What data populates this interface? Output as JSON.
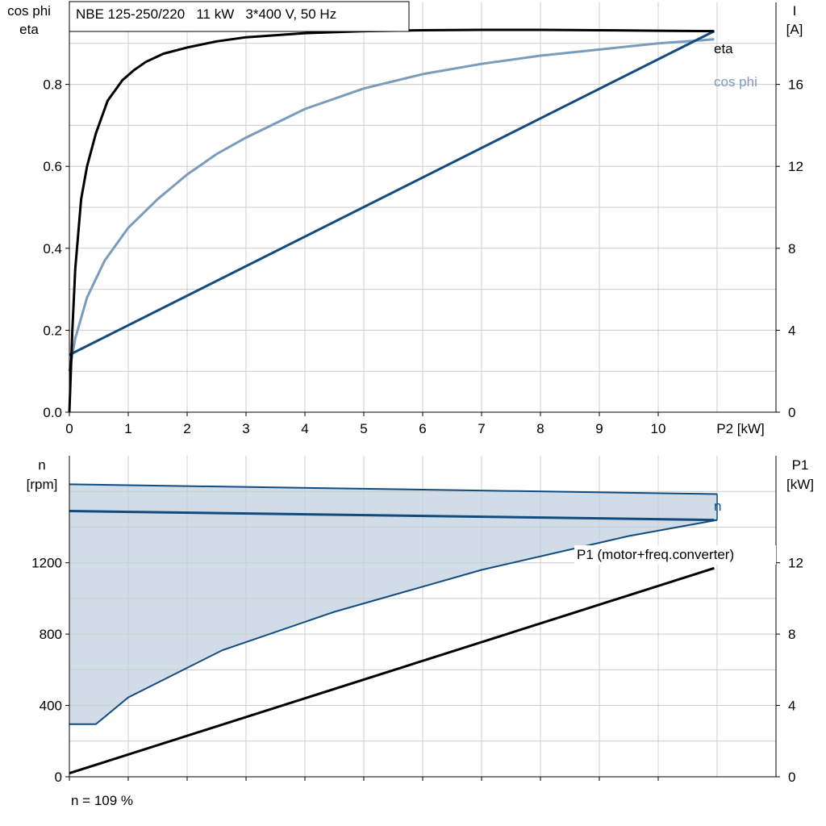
{
  "chart_data": [
    {
      "type": "line",
      "title": "NBE 125-250/220   11 kW   3*400 V, 50 Hz",
      "xlabel": "P2 [kW]",
      "xlim": [
        0,
        12
      ],
      "xticks": [
        0,
        1,
        2,
        3,
        4,
        5,
        6,
        7,
        8,
        9,
        10
      ],
      "ylabel_left": [
        "cos phi",
        "eta"
      ],
      "ylim_left": [
        0,
        1.0
      ],
      "yticks_left": [
        "0.0",
        "0.2",
        "0.4",
        "0.6",
        "0.8"
      ],
      "ylabel_right": [
        "I",
        "[A]"
      ],
      "ylim_right": [
        0,
        20
      ],
      "yticks_right": [
        "0",
        "4",
        "8",
        "12",
        "16"
      ],
      "grid": true,
      "series": [
        {
          "name": "eta",
          "axis": "left",
          "color": "#000000",
          "x": [
            0,
            0.05,
            0.1,
            0.2,
            0.3,
            0.45,
            0.65,
            0.9,
            1.1,
            1.3,
            1.6,
            2.0,
            2.5,
            3.0,
            4.0,
            5.0,
            6.0,
            7.0,
            8.0,
            9.0,
            10.0,
            10.95
          ],
          "y": [
            0,
            0.2,
            0.35,
            0.52,
            0.6,
            0.68,
            0.76,
            0.81,
            0.835,
            0.855,
            0.875,
            0.89,
            0.905,
            0.915,
            0.925,
            0.93,
            0.932,
            0.933,
            0.933,
            0.932,
            0.931,
            0.93
          ]
        },
        {
          "name": "cos phi",
          "axis": "left",
          "color": "#7a9cbc",
          "x": [
            0,
            0.1,
            0.3,
            0.6,
            1.0,
            1.5,
            2.0,
            2.5,
            3.0,
            4.0,
            5.0,
            6.0,
            7.0,
            8.0,
            9.0,
            10.0,
            10.95
          ],
          "y": [
            0.1,
            0.18,
            0.28,
            0.37,
            0.45,
            0.52,
            0.58,
            0.63,
            0.67,
            0.74,
            0.79,
            0.825,
            0.85,
            0.87,
            0.885,
            0.9,
            0.91
          ]
        },
        {
          "name": "",
          "axis": "right",
          "color": "#124b7e",
          "x": [
            0,
            10.95
          ],
          "y": [
            2.8,
            18.6
          ]
        }
      ]
    },
    {
      "type": "area",
      "xlim": [
        0,
        12
      ],
      "ylabel_left": [
        "n",
        "[rpm]"
      ],
      "ylim_left": [
        0,
        1800
      ],
      "yticks_left": [
        "0",
        "400",
        "800",
        "1200"
      ],
      "ylabel_right": [
        "P1",
        "[kW]"
      ],
      "ylim_right": [
        0,
        18
      ],
      "yticks_right": [
        "0",
        "4",
        "8",
        "12"
      ],
      "grid": true,
      "band": {
        "color": "#d0dce8",
        "edge_color": "#124b7e",
        "upper": {
          "x": [
            0,
            11.0
          ],
          "y": [
            1640,
            1585
          ]
        },
        "lower": {
          "x": [
            0,
            0.45,
            1.0,
            2.6,
            4.5,
            7.0,
            9.5,
            11.0
          ],
          "y": [
            295,
            295,
            445,
            710,
            925,
            1160,
            1350,
            1440
          ]
        }
      },
      "series": [
        {
          "name": "n",
          "axis": "left",
          "color": "#124b7e",
          "x": [
            0,
            10.95
          ],
          "y": [
            1490,
            1440
          ]
        },
        {
          "name": "P1 (motor+freq.converter)",
          "axis": "right",
          "color": "#000000",
          "x": [
            0,
            10.95
          ],
          "y": [
            0.2,
            11.7
          ]
        }
      ],
      "footnote": "n = 109 %"
    }
  ]
}
